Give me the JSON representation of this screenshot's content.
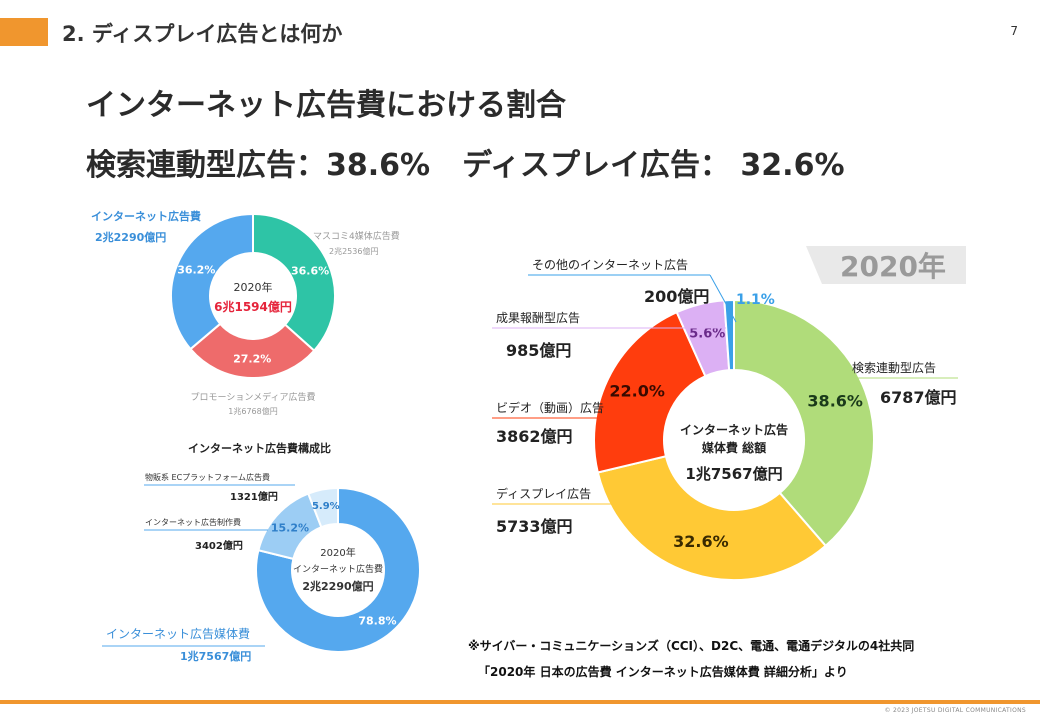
{
  "slide": {
    "title": "2. ディスプレイ広告とは何か",
    "page_number": "7",
    "headline1": "インターネット広告費における割合",
    "headline2_a": "検索連動型広告：38.6%",
    "headline2_b": "ディスプレイ広告： 32.6%",
    "note1": "※サイバー・コミュニケーションズ（CCI）、D2C、電通、電通デジタルの4社共同",
    "note2": "「2020年 日本の広告費 インターネット広告媒体費 詳細分析」より",
    "copyright": "© 2023 JOETSU DIGITAL COMMUNICATIONS",
    "colors": {
      "accent": "#f0962e"
    }
  },
  "chart_data": [
    {
      "type": "pie",
      "donut": true,
      "center_year": "2020年",
      "center_total": "6兆1594億円",
      "categories": [
        "マスコミ4媒体広告費",
        "プロモーションメディア広告費",
        "インターネット広告費"
      ],
      "values": [
        36.6,
        27.2,
        36.2
      ],
      "value_labels": [
        "36.6%",
        "27.2%",
        "36.2%"
      ],
      "amounts": [
        "2兆2536億円",
        "1兆6768億円",
        "2兆2290億円"
      ],
      "colors": [
        "#2ec4a6",
        "#ee6b6b",
        "#55a8ee"
      ]
    },
    {
      "type": "pie",
      "donut": true,
      "title": "インターネット広告費構成比",
      "center_year": "2020年",
      "center_label": "インターネット広告費",
      "center_total": "2兆2290億円",
      "categories": [
        "インターネット広告媒体費",
        "インターネット広告制作費",
        "物販系 ECプラットフォーム広告費"
      ],
      "values": [
        78.8,
        15.2,
        5.9
      ],
      "value_labels": [
        "78.8%",
        "15.2%",
        "5.9%"
      ],
      "amounts": [
        "1兆7567億円",
        "3402億円",
        "1321億円"
      ],
      "colors": [
        "#55a8ee",
        "#9ccdf4",
        "#d6ebfb"
      ]
    },
    {
      "type": "pie",
      "donut": true,
      "year_badge": "2020年",
      "center_label_1": "インターネット広告",
      "center_label_2": "媒体費 総額",
      "center_total": "1兆7567億円",
      "categories": [
        "検索連動型広告",
        "ディスプレイ広告",
        "ビデオ（動画）広告",
        "成果報酬型広告",
        "その他のインターネット広告"
      ],
      "values": [
        38.6,
        32.6,
        22.0,
        5.6,
        1.1
      ],
      "value_labels": [
        "38.6%",
        "32.6%",
        "22.0%",
        "5.6%",
        "1.1%"
      ],
      "amounts": [
        "6787億円",
        "5733億円",
        "3862億円",
        "985億円",
        "200億円"
      ],
      "colors": [
        "#b0dc7a",
        "#ffc935",
        "#ff3d0d",
        "#dcb0f4",
        "#3aa0e8"
      ]
    }
  ]
}
